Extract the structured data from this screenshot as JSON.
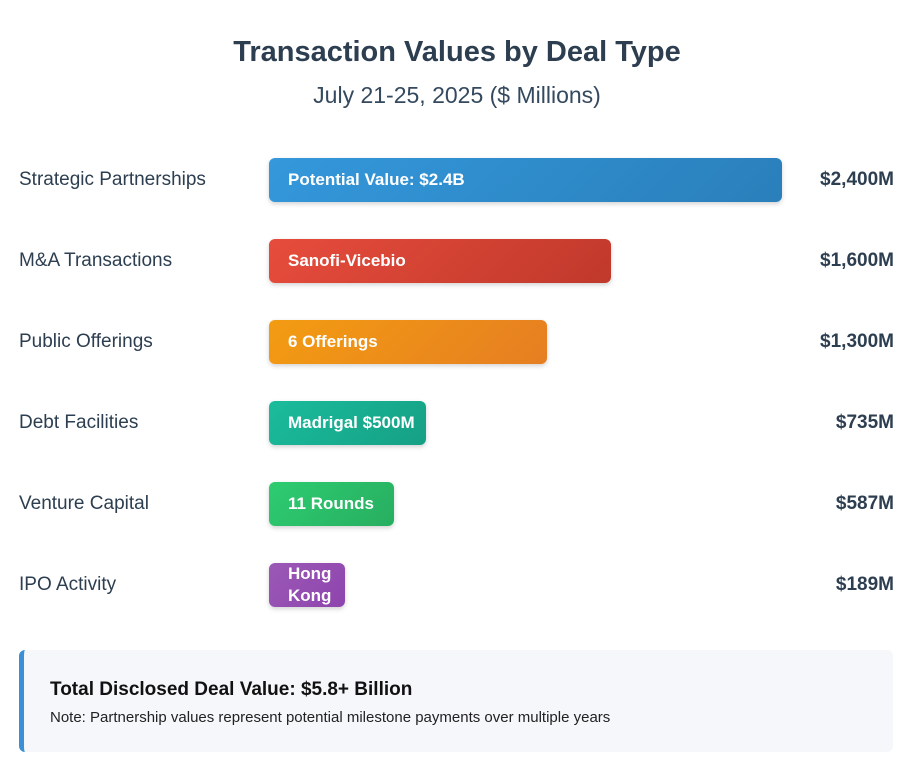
{
  "chart_data": {
    "type": "bar",
    "orientation": "horizontal",
    "title": "Transaction Values by Deal Type",
    "subtitle": "July 21-25, 2025 ($ Millions)",
    "categories": [
      "Strategic Partnerships",
      "M&A Transactions",
      "Public Offerings",
      "Debt Facilities",
      "Venture Capital",
      "IPO Activity"
    ],
    "values": [
      2400,
      1600,
      1300,
      735,
      587,
      189
    ],
    "value_labels": [
      "$2,400M",
      "$1,600M",
      "$1,300M",
      "$735M",
      "$587M",
      "$189M"
    ],
    "bar_labels": [
      "Potential Value: $2.4B",
      "Sanofi-Vicebio",
      "6 Offerings",
      "Madrigal $500M",
      "11 Rounds",
      "Hong Kong"
    ],
    "colors": [
      [
        "#3498db",
        "#2a7fba"
      ],
      [
        "#e74c3c",
        "#c0392b"
      ],
      [
        "#f39c12",
        "#e67e22"
      ],
      [
        "#1abc9c",
        "#16a085"
      ],
      [
        "#2ecc71",
        "#27ae60"
      ],
      [
        "#9b59b6",
        "#8e44ad"
      ]
    ]
  },
  "summary": {
    "title": "Total Disclosed Deal Value: $5.8+ Billion",
    "note": "Note: Partnership values represent potential milestone payments over multiple years"
  }
}
